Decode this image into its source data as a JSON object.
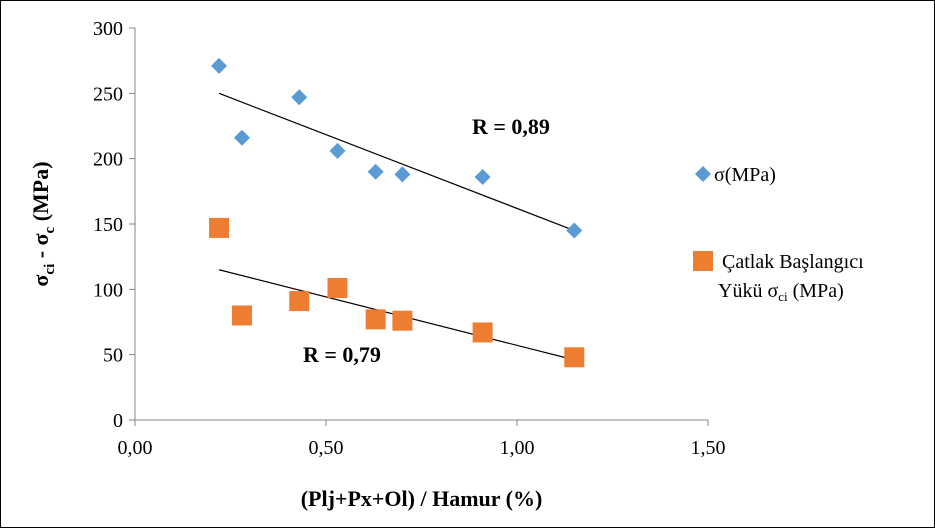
{
  "chart_data": {
    "type": "scatter",
    "xlabel": "(Plj+Px+Ol) / Hamur (%)",
    "ylabel": {
      "parts": [
        "σ",
        "ci",
        " - σ",
        "c",
        " (MPa)"
      ]
    },
    "xlim": [
      0,
      1.5
    ],
    "ylim": [
      0,
      300
    ],
    "x_ticks": [
      0,
      0.5,
      1.0,
      1.5
    ],
    "x_tick_labels": [
      "0,00",
      "0,50",
      "1,00",
      "1,50"
    ],
    "y_ticks": [
      0,
      50,
      100,
      150,
      200,
      250,
      300
    ],
    "y_tick_labels": [
      "0",
      "50",
      "100",
      "150",
      "200",
      "250",
      "300"
    ],
    "grid": false,
    "legend_position": "right",
    "series": [
      {
        "name": "σ(MPa)",
        "marker": "diamond",
        "color": "#5B9BD5",
        "x": [
          0.22,
          0.28,
          0.43,
          0.53,
          0.63,
          0.7,
          0.91,
          1.15
        ],
        "y": [
          271,
          216,
          247,
          206,
          190,
          188,
          186,
          145
        ],
        "trendline": {
          "x": [
            0.22,
            1.15
          ],
          "y": [
            250,
            145
          ]
        },
        "annotation": "R = 0,89"
      },
      {
        "name": "Çatlak Başlangıcı Yükü σci (MPa)",
        "legend_lines": [
          "Çatlak Başlangıcı",
          "Yükü  σ",
          "ci",
          " (MPa)"
        ],
        "marker": "square",
        "color": "#ED7D31",
        "x": [
          0.22,
          0.28,
          0.43,
          0.53,
          0.63,
          0.7,
          0.91,
          1.15
        ],
        "y": [
          147,
          80,
          91,
          101,
          77,
          76,
          67,
          48
        ],
        "trendline": {
          "x": [
            0.22,
            1.15
          ],
          "y": [
            115,
            46
          ]
        },
        "annotation": "R = 0,79"
      }
    ]
  }
}
